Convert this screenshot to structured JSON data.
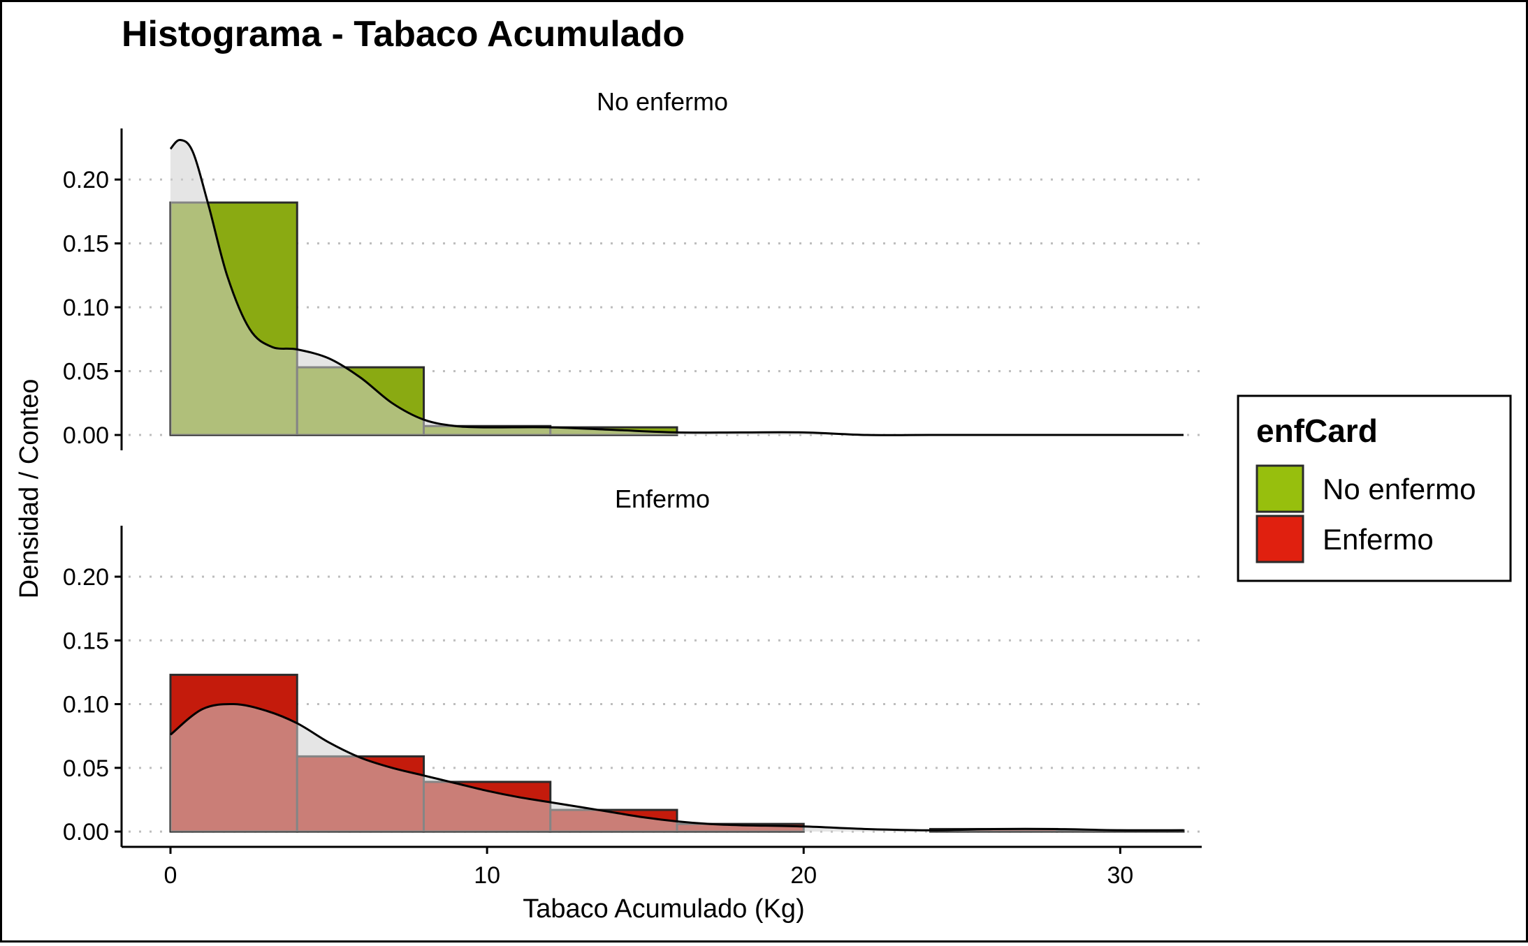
{
  "chart_data": {
    "type": "bar",
    "title": "Histograma - Tabaco Acumulado",
    "xlabel": "Tabaco Acumulado (Kg)",
    "ylabel": "Densidad / Conteo",
    "xlim": [
      -1.6,
      33.8
    ],
    "ylim": [
      -0.012,
      0.24
    ],
    "x_ticks": [
      0,
      10,
      20,
      30
    ],
    "x_tick_labels": [
      "0",
      "10",
      "20",
      "30"
    ],
    "y_ticks": [
      0,
      0.05,
      0.1,
      0.15,
      0.2
    ],
    "y_tick_labels": [
      "0.00",
      "0.05",
      "0.10",
      "0.15",
      "0.20"
    ],
    "grid": "horizontal dotted",
    "bin_edges": [
      0,
      4,
      8,
      12,
      16,
      20,
      24,
      28,
      32
    ],
    "legend": {
      "title": "enfCard",
      "position": "right",
      "items": [
        {
          "label": "No enfermo",
          "color": "#97bf0d"
        },
        {
          "label": "Enfermo",
          "color": "#e0200f"
        }
      ]
    },
    "panels": [
      {
        "strip": "No enfermo",
        "bar_color": "#8aaa12",
        "bar_values": [
          0.182,
          0.053,
          0.007,
          0.006,
          0.0,
          0.0,
          0.0,
          0.0
        ],
        "density": {
          "x": [
            0,
            0.3,
            0.7,
            1.2,
            1.8,
            2.5,
            3.2,
            4.0,
            5.0,
            6.0,
            7.0,
            8.0,
            9.0,
            10.0,
            12.0,
            14.0,
            16.0,
            18.0,
            20.0,
            22.0,
            24.0,
            28.0,
            32.0
          ],
          "y": [
            0.224,
            0.231,
            0.222,
            0.18,
            0.124,
            0.083,
            0.069,
            0.067,
            0.06,
            0.045,
            0.025,
            0.012,
            0.007,
            0.006,
            0.006,
            0.004,
            0.002,
            0.002,
            0.002,
            0.0,
            0.0,
            0.0,
            0.0
          ]
        }
      },
      {
        "strip": "Enfermo",
        "bar_color": "#c41b0c",
        "bar_values": [
          0.123,
          0.059,
          0.039,
          0.017,
          0.006,
          0.0,
          0.002,
          0.001
        ],
        "density": {
          "x": [
            0,
            1.0,
            2.0,
            3.0,
            4.0,
            5.0,
            6.0,
            7.0,
            8.0,
            9.0,
            10.0,
            11.0,
            12.0,
            13.0,
            14.0,
            15.0,
            16.0,
            17.0,
            18.0,
            20.0,
            22.0,
            24.0,
            26.0,
            28.0,
            30.0,
            32.0
          ],
          "y": [
            0.076,
            0.096,
            0.1,
            0.095,
            0.085,
            0.07,
            0.058,
            0.05,
            0.044,
            0.038,
            0.032,
            0.027,
            0.023,
            0.019,
            0.015,
            0.011,
            0.008,
            0.006,
            0.005,
            0.004,
            0.002,
            0.001,
            0.002,
            0.002,
            0.001,
            0.001
          ]
        }
      }
    ]
  }
}
